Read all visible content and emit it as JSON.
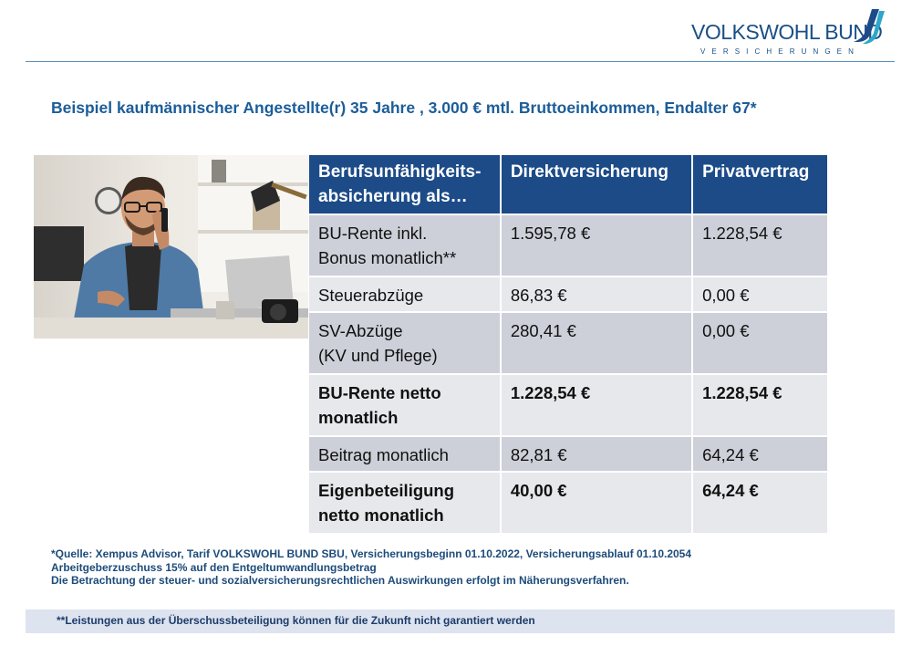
{
  "brand": {
    "name": "VOLKSWOHL BUND",
    "tagline": "VERSICHERUNGEN",
    "primary_color": "#1c4b88",
    "accent_color": "#1c5d99"
  },
  "headline": "Beispiel kaufmännischer Angestellte(r) 35 Jahre , 3.000 € mtl. Bruttoeinkommen, Endalter 67*",
  "photo": {
    "icon": "man-on-phone-at-desk-photo"
  },
  "table": {
    "headers": [
      "Berufsunfähigkeits-\nabsicherung als…",
      "Direktversicherung",
      "Privatvertrag"
    ],
    "rows": [
      {
        "label": "BU-Rente inkl.\nBonus monatlich**",
        "direkt": "1.595,78 €",
        "privat": "1.228,54 €",
        "bold": false
      },
      {
        "label": "Steuerabzüge",
        "direkt": "86,83 €",
        "privat": "0,00 €",
        "bold": false
      },
      {
        "label": "SV-Abzüge\n(KV und Pflege)",
        "direkt": "280,41 €",
        "privat": "0,00 €",
        "bold": false
      },
      {
        "label": "BU-Rente netto\nmonatlich",
        "direkt": "1.228,54 €",
        "privat": "1.228,54 €",
        "bold": true
      },
      {
        "label": "Beitrag monatlich",
        "direkt": "82,81 €",
        "privat": "64,24 €",
        "bold": false
      },
      {
        "label": "Eigenbeteiligung\nnetto monatlich",
        "direkt": "40,00 €",
        "privat": "64,24 €",
        "bold": true
      }
    ]
  },
  "footnotes": [
    "*Quelle: Xempus Advisor, Tarif VOLKSWOHL BUND SBU, Versicherungsbeginn 01.10.2022, Versicherungsablauf 01.10.2054",
    "Arbeitgeberzuschuss 15% auf den Entgeltumwandlungsbetrag",
    "Die Betrachtung der steuer- und sozialversicherungsrechtlichen Auswirkungen erfolgt im Näherungsverfahren."
  ],
  "disclaimer": "**Leistungen aus der Überschussbeteiligung können für die Zukunft nicht garantiert werden"
}
